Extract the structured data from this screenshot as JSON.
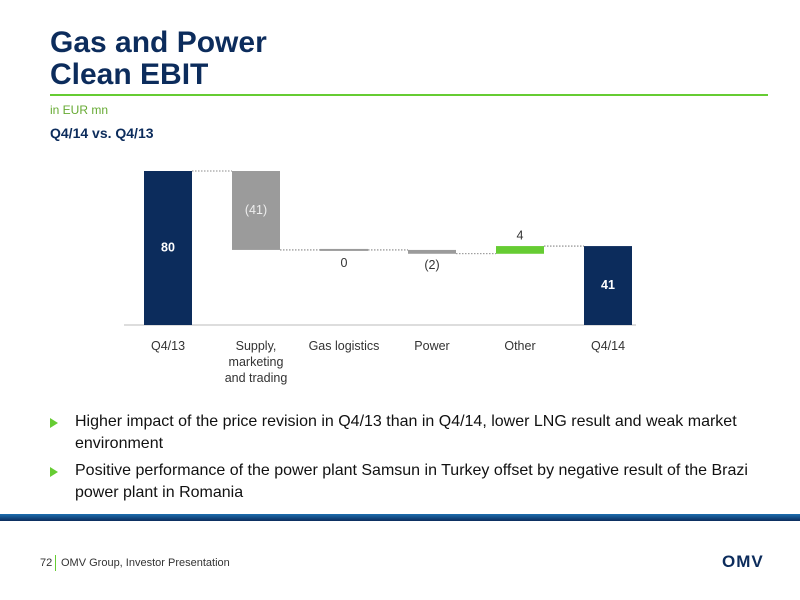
{
  "header": {
    "title_line1": "Gas and Power",
    "title_line2": "Clean EBIT",
    "unit": "in EUR mn",
    "subtitle": "Q4/14 vs. Q4/13"
  },
  "chart_data": {
    "type": "waterfall",
    "categories": [
      "Q4/13",
      "Supply, marketing and trading",
      "Gas logistics",
      "Power",
      "Other",
      "Q4/14"
    ],
    "values": [
      80,
      -41,
      0,
      -2,
      4,
      41
    ],
    "value_labels": [
      "80",
      "(41)",
      "0",
      "(2)",
      "4",
      "41"
    ],
    "colors": [
      "#0c2c5c",
      "#9b9b9b",
      "#9b9b9b",
      "#9b9b9b",
      "#66cc33",
      "#0c2c5c"
    ]
  },
  "bullets": [
    "Higher impact of the price revision in Q4/13 than in Q4/14, lower LNG result and weak market environment",
    "Positive performance of the power plant Samsun in Turkey offset by negative result of the Brazi power plant in Romania"
  ],
  "footer": {
    "page": "72",
    "text": "OMV Group, Investor Presentation",
    "logo": "OMV"
  }
}
